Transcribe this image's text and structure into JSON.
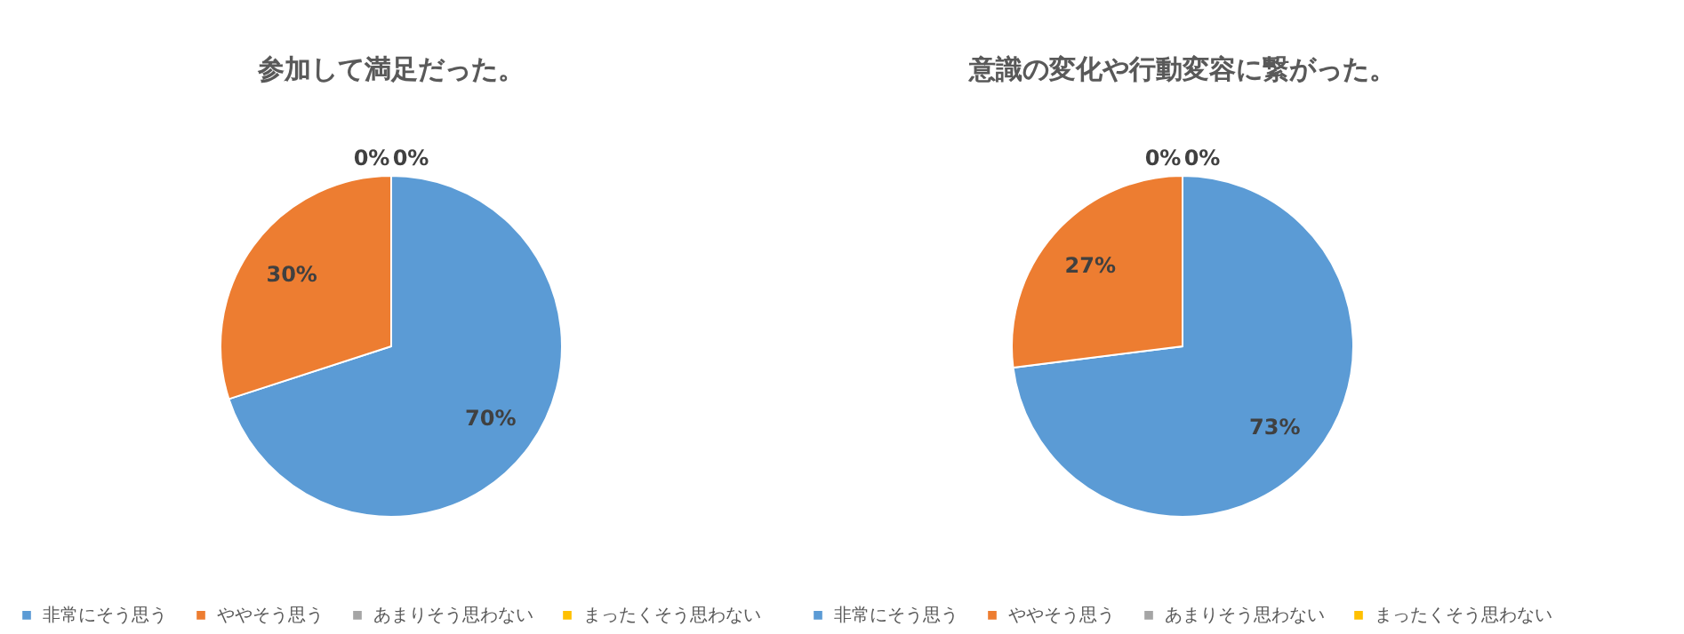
{
  "chart_data": [
    {
      "type": "pie",
      "title": "参加して満足だった。",
      "categories": [
        "非常にそう思う",
        "ややそう思う",
        "あまりそう思わない",
        "まったくそう思わない"
      ],
      "values": [
        70,
        30,
        0,
        0
      ],
      "colors": [
        "#5b9bd5",
        "#ed7d31",
        "#a5a5a5",
        "#ffc000"
      ],
      "value_labels": [
        "70%",
        "30%",
        "0%",
        "0%"
      ],
      "legend": "bottom"
    },
    {
      "type": "pie",
      "title": "意識の変化や行動変容に繋がった。",
      "categories": [
        "非常にそう思う",
        "ややそう思う",
        "あまりそう思わない",
        "まったくそう思わない"
      ],
      "values": [
        73,
        27,
        0,
        0
      ],
      "colors": [
        "#5b9bd5",
        "#ed7d31",
        "#a5a5a5",
        "#ffc000"
      ],
      "value_labels": [
        "73%",
        "27%",
        "0%",
        "0%"
      ],
      "legend": "bottom"
    }
  ]
}
